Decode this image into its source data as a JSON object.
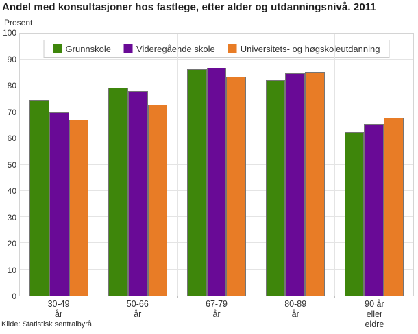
{
  "title": "Andel med konsultasjoner hos fastlege, etter alder og utdanningsnivå. 2011",
  "y_axis_label": "Prosent",
  "source": "Kilde: Statistisk sentralbyrå.",
  "chart_data": {
    "type": "bar",
    "title": "Andel med konsultasjoner hos fastlege, etter alder og utdanningsnivå. 2011",
    "xlabel": "",
    "ylabel": "Prosent",
    "ylim": [
      0,
      100
    ],
    "ytick_step": 10,
    "grid": true,
    "legend_position": "top-center",
    "categories": [
      [
        "30-49",
        "år"
      ],
      [
        "50-66",
        "år"
      ],
      [
        "67-79",
        "år"
      ],
      [
        "80-89",
        "år"
      ],
      [
        "90 år",
        "eller",
        "eldre"
      ]
    ],
    "series": [
      {
        "name": "Grunnskole",
        "color": "#3e860b",
        "values": [
          74.8,
          79.5,
          86.3,
          82.3,
          62.3
        ]
      },
      {
        "name": "Videregående skole",
        "color": "#690a96",
        "values": [
          70.0,
          78.2,
          86.9,
          84.9,
          65.6
        ]
      },
      {
        "name": "Universitets- og høgskoleutdanning",
        "color": "#e87c26",
        "values": [
          67.0,
          72.8,
          83.6,
          85.4,
          68.0
        ]
      }
    ]
  }
}
